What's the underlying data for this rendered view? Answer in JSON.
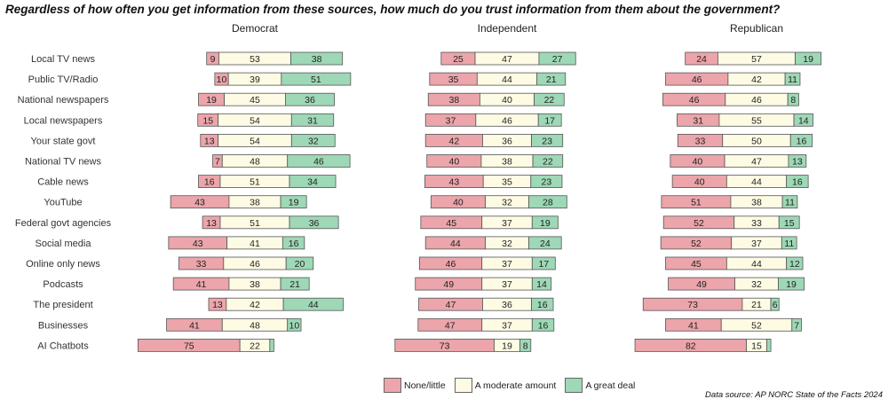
{
  "title": "Regardless of how often you get information from these sources, how much do you trust information from them about the government?",
  "source": "Data source: AP NORC State of the Facts 2024",
  "legend": [
    {
      "label": "None/little",
      "color": "#eba5ab"
    },
    {
      "label": "A moderate amount",
      "color": "#fdfbe3"
    },
    {
      "label": "A great deal",
      "color": "#9ed8b6"
    }
  ],
  "chart_data": {
    "type": "bar",
    "stacking": "diverging",
    "categories": [
      "Local TV news",
      "Public TV/Radio",
      "National newspapers",
      "Local newspapers",
      "Your state govt",
      "National TV news",
      "Cable news",
      "YouTube",
      "Federal govt agencies",
      "Social media",
      "Online only news",
      "Podcasts",
      "The president",
      "Businesses",
      "AI Chatbots"
    ],
    "panels": [
      {
        "name": "Democrat",
        "series": [
          {
            "name": "None/little",
            "values": [
              9,
              10,
              19,
              15,
              13,
              7,
              16,
              43,
              13,
              43,
              33,
              41,
              13,
              41,
              75
            ]
          },
          {
            "name": "A moderate amount",
            "values": [
              53,
              39,
              45,
              54,
              54,
              48,
              51,
              38,
              51,
              41,
              46,
              38,
              42,
              48,
              22
            ]
          },
          {
            "name": "A great deal",
            "values": [
              38,
              51,
              36,
              31,
              32,
              46,
              34,
              19,
              36,
              16,
              20,
              21,
              44,
              10,
              3
            ]
          }
        ]
      },
      {
        "name": "Independent",
        "series": [
          {
            "name": "None/little",
            "values": [
              25,
              35,
              38,
              37,
              42,
              40,
              43,
              40,
              45,
              44,
              46,
              49,
              47,
              47,
              73
            ]
          },
          {
            "name": "A moderate amount",
            "values": [
              47,
              44,
              40,
              46,
              36,
              38,
              35,
              32,
              37,
              32,
              37,
              37,
              36,
              37,
              19
            ]
          },
          {
            "name": "A great deal",
            "values": [
              27,
              21,
              22,
              17,
              23,
              22,
              23,
              28,
              19,
              24,
              17,
              14,
              16,
              16,
              8
            ]
          }
        ]
      },
      {
        "name": "Republican",
        "series": [
          {
            "name": "None/little",
            "values": [
              24,
              46,
              46,
              31,
              33,
              40,
              40,
              51,
              52,
              52,
              45,
              49,
              73,
              41,
              82
            ]
          },
          {
            "name": "A moderate amount",
            "values": [
              57,
              42,
              46,
              55,
              50,
              47,
              44,
              38,
              33,
              37,
              44,
              32,
              21,
              52,
              15
            ]
          },
          {
            "name": "A great deal",
            "values": [
              19,
              11,
              8,
              14,
              16,
              13,
              16,
              11,
              15,
              11,
              12,
              19,
              6,
              7,
              3
            ]
          }
        ]
      }
    ]
  }
}
